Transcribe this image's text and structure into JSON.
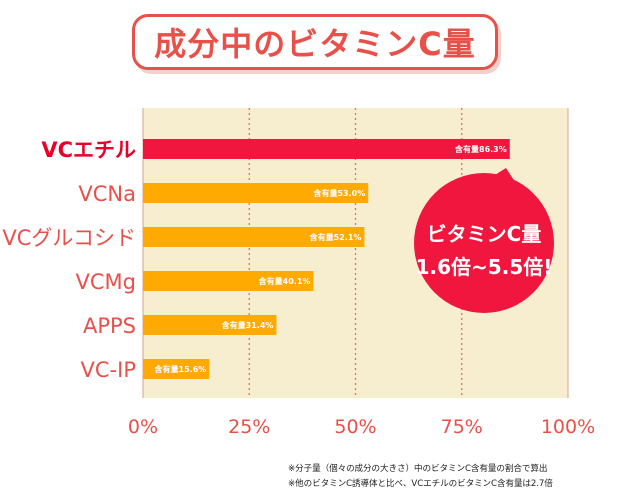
{
  "title": "成分中のビタミンC量",
  "chart_data": {
    "type": "bar",
    "orientation": "horizontal",
    "categories": [
      "VCエチル",
      "VCNa",
      "VCグルコシド",
      "VCMg",
      "APPS",
      "VC-IP"
    ],
    "values": [
      86.3,
      53.0,
      52.1,
      40.1,
      31.4,
      15.6
    ],
    "value_labels": [
      "含有量86.3%",
      "含有量53.0%",
      "含有量52.1%",
      "含有量40.1%",
      "含有量31.4%",
      "含有量15.6%"
    ],
    "xlim": [
      0,
      100
    ],
    "xticks": [
      "0%",
      "25%",
      "50%",
      "75%",
      "100%"
    ],
    "grid": true,
    "highlight_index": 0
  },
  "callout": {
    "line1": "ビタミンC量",
    "line2": "1.6倍~5.5倍!"
  },
  "footnotes": [
    "※分子量（個々の成分の大きさ）中のビタミンC含有量の割合で算出",
    "※他のビタミンC誘導体と比べ、VCエチルのビタミンC含有量は2.7倍"
  ],
  "colors": {
    "highlight_bar": "#f0163e",
    "bar": "#ffaa00",
    "plot_background": "#f7eed0",
    "accent": "#e8504a",
    "callout_bg": "#f0163e"
  }
}
